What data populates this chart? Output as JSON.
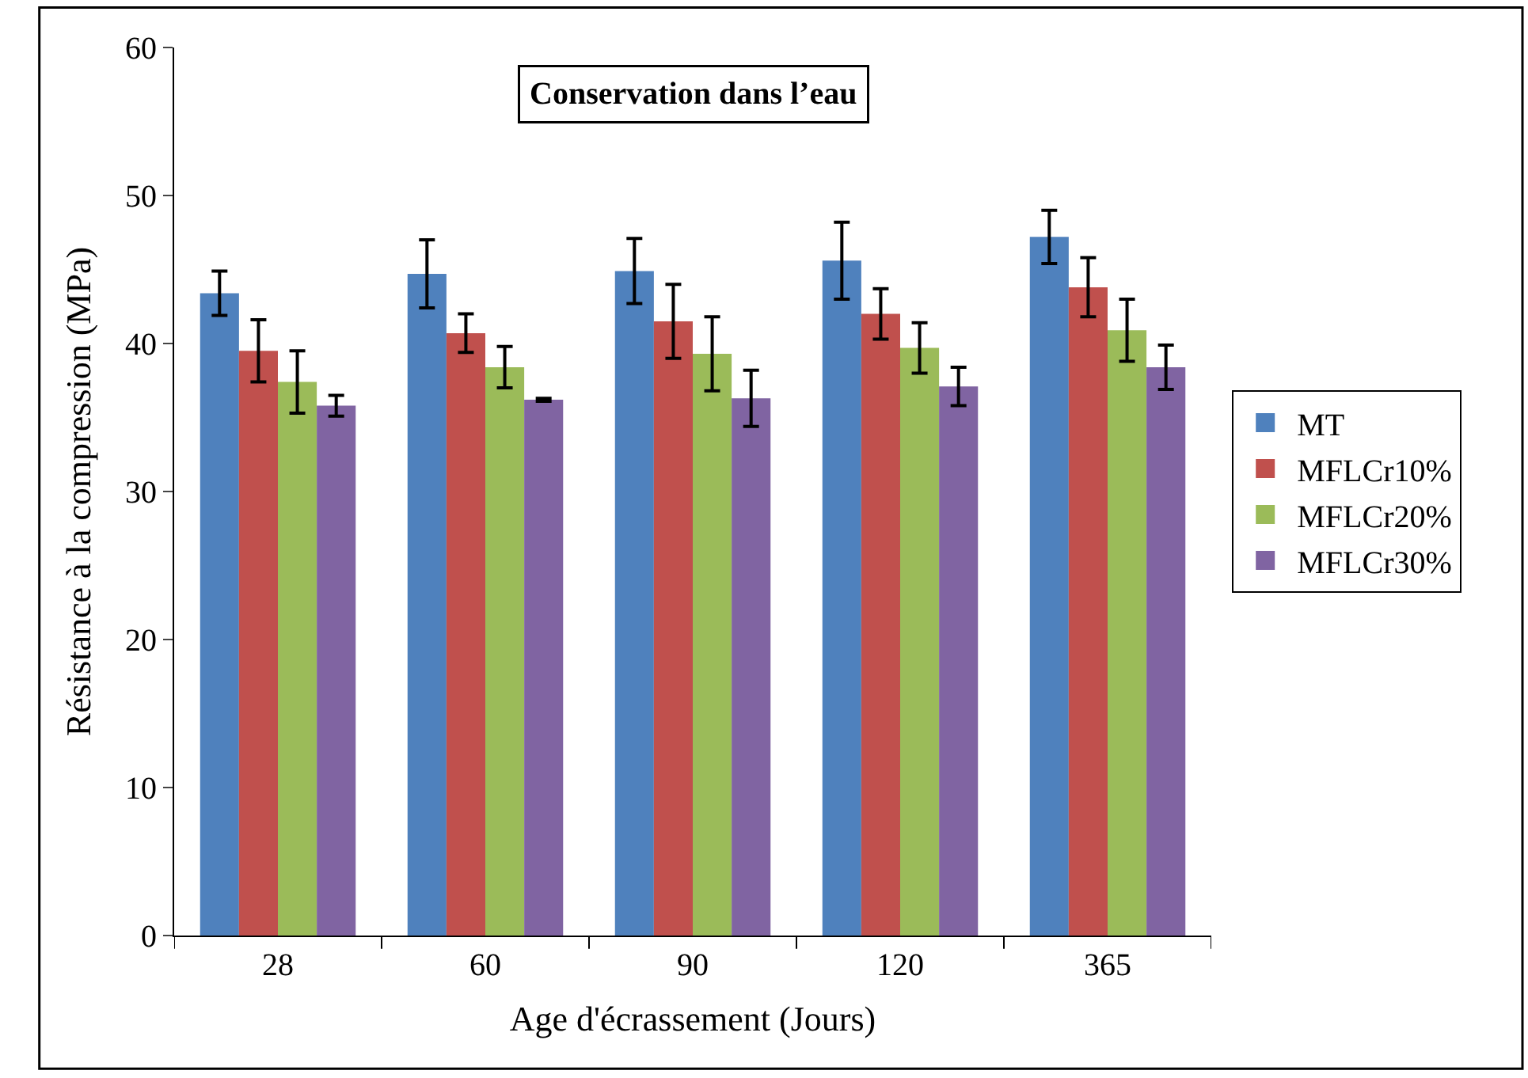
{
  "chart_data": {
    "type": "bar",
    "title": "Conservation dans l’eau",
    "xlabel": "Age d'écrassement (Jours)",
    "ylabel": "Résistance à la compression (MPa)",
    "categories": [
      "28",
      "60",
      "90",
      "120",
      "365"
    ],
    "series": [
      {
        "name": "MT",
        "color": "#4f81bd",
        "values": [
          43.4,
          44.7,
          44.9,
          45.6,
          47.2
        ],
        "errors": [
          1.5,
          2.3,
          2.2,
          2.6,
          1.8
        ]
      },
      {
        "name": "MFLCr10%",
        "color": "#c0504d",
        "values": [
          39.5,
          40.7,
          41.5,
          42.0,
          43.8
        ],
        "errors": [
          2.1,
          1.3,
          2.5,
          1.7,
          2.0
        ]
      },
      {
        "name": "MFLCr20%",
        "color": "#9bbb59",
        "values": [
          37.4,
          38.4,
          39.3,
          39.7,
          40.9
        ],
        "errors": [
          2.1,
          1.4,
          2.5,
          1.7,
          2.1
        ]
      },
      {
        "name": "MFLCr30%",
        "color": "#8064a2",
        "values": [
          35.8,
          36.2,
          36.3,
          37.1,
          38.4
        ],
        "errors": [
          0.7,
          0.1,
          1.9,
          1.3,
          1.5
        ]
      }
    ],
    "ylim": [
      0,
      60
    ],
    "yticks": [
      0,
      10,
      20,
      30,
      40,
      50,
      60
    ],
    "legend": "right"
  }
}
